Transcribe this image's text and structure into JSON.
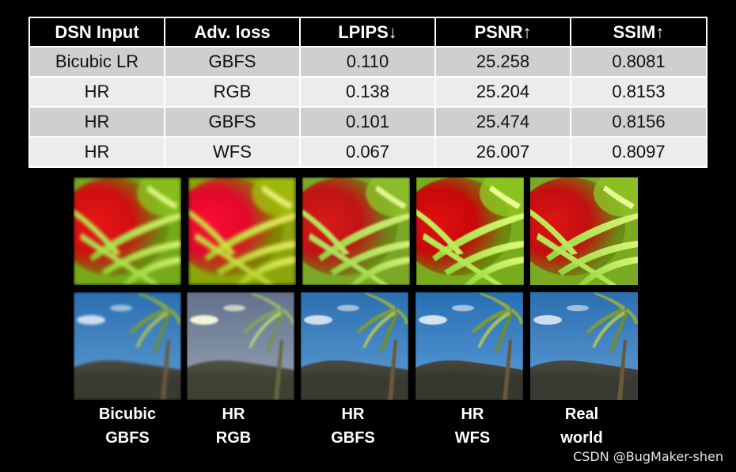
{
  "table": {
    "headers": [
      "DSN Input",
      "Adv. loss",
      "LPIPS↓",
      "PSNR↑",
      "SSIM↑"
    ],
    "rows": [
      [
        "Bicubic LR",
        "GBFS",
        "0.110",
        "25.258",
        "0.8081"
      ],
      [
        "HR",
        "RGB",
        "0.138",
        "25.204",
        "0.8153"
      ],
      [
        "HR",
        "GBFS",
        "0.101",
        "25.474",
        "0.8156"
      ],
      [
        "HR",
        "WFS",
        "0.067",
        "26.007",
        "0.8097"
      ]
    ]
  },
  "figure": {
    "captions": [
      {
        "line1": "Bicubic",
        "line2": "GBFS"
      },
      {
        "line1": "HR",
        "line2": "RGB"
      },
      {
        "line1": "HR",
        "line2": "GBFS"
      },
      {
        "line1": "HR",
        "line2": "WFS"
      },
      {
        "line1": "Real",
        "line2": "world"
      }
    ],
    "rows": [
      "flower-leaves",
      "palm-tree-coast"
    ]
  },
  "watermark": "CSDN @BugMaker-shen",
  "colors": {
    "background": "#000000",
    "row_dark": "#cfcfcf",
    "row_light": "#ececec"
  }
}
